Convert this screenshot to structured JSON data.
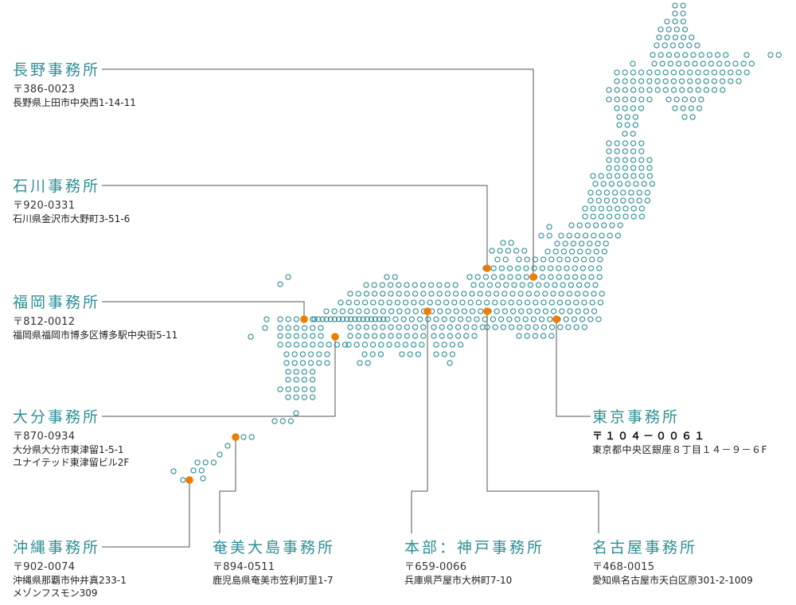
{
  "colors": {
    "dot": "#2f8f95",
    "pin": "#ef7d00",
    "line": "#555555",
    "office_name": "#2f8f95"
  },
  "offices": {
    "nagano": {
      "name": "長野事務所",
      "zip": "〒386-0023",
      "address": [
        "長野県上田市中央西1-14-11"
      ]
    },
    "ishikawa": {
      "name": "石川事務所",
      "zip": "〒920-0331",
      "address": [
        "石川県金沢市大野町3-51-6"
      ]
    },
    "fukuoka": {
      "name": "福岡事務所",
      "zip": "〒812-0012",
      "address": [
        "福岡県福岡市博多区博多駅中央街5-11"
      ]
    },
    "oita": {
      "name": "大分事務所",
      "zip": "〒870-0934",
      "address": [
        "大分県大分市東津留1-5-1",
        "ユナイテッド東津留ビル2F"
      ]
    },
    "okinawa": {
      "name": "沖縄事務所",
      "zip": "〒902-0074",
      "address": [
        "沖縄県那覇市仲井真233-1",
        "メゾンフスモン309"
      ]
    },
    "amami": {
      "name": "奄美大島事務所",
      "zip": "〒894-0511",
      "address": [
        "鹿児島県奄美市笠利町里1-7"
      ]
    },
    "kobe": {
      "name": "本部：神戸事務所",
      "zip": "〒659-0066",
      "address": [
        "兵庫県芦屋市大桝町7-10"
      ]
    },
    "nagoya": {
      "name": "名古屋事務所",
      "zip": "〒468-0015",
      "address": [
        "愛知県名古屋市天白区原301-2-1009"
      ]
    },
    "tokyo": {
      "name": "東京事務所",
      "zip": "〒１０４－００６１",
      "address": [
        "東京都中央区銀座８丁目１４－９－６F"
      ]
    }
  }
}
